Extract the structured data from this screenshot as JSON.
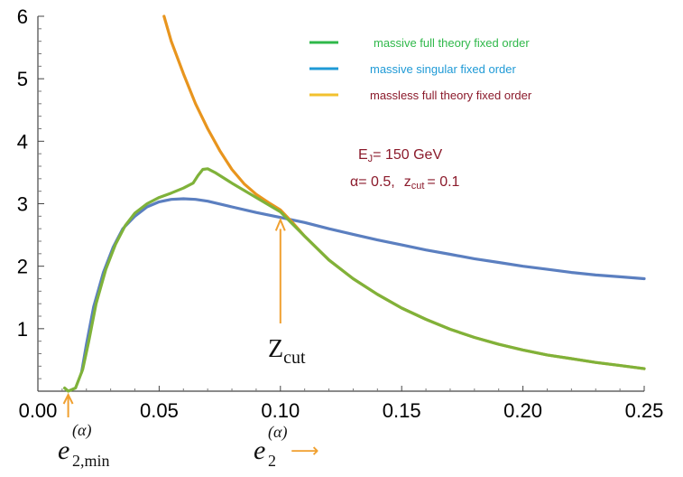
{
  "chart_data": {
    "type": "line",
    "xlim": [
      0.0,
      0.25
    ],
    "ylim": [
      0,
      6
    ],
    "x_ticks": [
      "0.00",
      "0.05",
      "0.10",
      "0.15",
      "0.20",
      "0.25"
    ],
    "y_ticks": [
      "1",
      "2",
      "3",
      "4",
      "5",
      "6"
    ],
    "legend_position": "top-right",
    "series": [
      {
        "name": "massive full theory fixed order",
        "color": "#2fb84a",
        "draw_color": "#7fb23a",
        "points": [
          [
            0.011,
            0.05
          ],
          [
            0.0125,
            0.0
          ],
          [
            0.0155,
            0.05
          ],
          [
            0.0185,
            0.35
          ],
          [
            0.021,
            0.8
          ],
          [
            0.024,
            1.4
          ],
          [
            0.028,
            1.95
          ],
          [
            0.032,
            2.35
          ],
          [
            0.036,
            2.65
          ],
          [
            0.04,
            2.85
          ],
          [
            0.045,
            3.0
          ],
          [
            0.05,
            3.1
          ],
          [
            0.055,
            3.17
          ],
          [
            0.06,
            3.25
          ],
          [
            0.064,
            3.33
          ],
          [
            0.066,
            3.45
          ],
          [
            0.068,
            3.55
          ],
          [
            0.07,
            3.56
          ],
          [
            0.073,
            3.5
          ],
          [
            0.08,
            3.33
          ],
          [
            0.09,
            3.1
          ],
          [
            0.1,
            2.87
          ],
          [
            0.11,
            2.48
          ],
          [
            0.12,
            2.1
          ],
          [
            0.13,
            1.8
          ],
          [
            0.14,
            1.55
          ],
          [
            0.15,
            1.33
          ],
          [
            0.16,
            1.15
          ],
          [
            0.17,
            0.99
          ],
          [
            0.18,
            0.86
          ],
          [
            0.19,
            0.75
          ],
          [
            0.2,
            0.66
          ],
          [
            0.21,
            0.58
          ],
          [
            0.22,
            0.52
          ],
          [
            0.23,
            0.46
          ],
          [
            0.24,
            0.41
          ],
          [
            0.25,
            0.36
          ]
        ]
      },
      {
        "name": "massive singular fixed order",
        "color": "#1f9ad6",
        "draw_color": "#5b7fc0",
        "points": [
          [
            0.018,
            0.3
          ],
          [
            0.02,
            0.75
          ],
          [
            0.023,
            1.35
          ],
          [
            0.027,
            1.9
          ],
          [
            0.031,
            2.3
          ],
          [
            0.035,
            2.6
          ],
          [
            0.04,
            2.8
          ],
          [
            0.045,
            2.95
          ],
          [
            0.05,
            3.03
          ],
          [
            0.055,
            3.07
          ],
          [
            0.06,
            3.08
          ],
          [
            0.065,
            3.07
          ],
          [
            0.07,
            3.04
          ],
          [
            0.08,
            2.95
          ],
          [
            0.09,
            2.86
          ],
          [
            0.1,
            2.78
          ],
          [
            0.11,
            2.7
          ],
          [
            0.12,
            2.6
          ],
          [
            0.13,
            2.51
          ],
          [
            0.14,
            2.42
          ],
          [
            0.15,
            2.34
          ],
          [
            0.16,
            2.26
          ],
          [
            0.17,
            2.19
          ],
          [
            0.18,
            2.12
          ],
          [
            0.19,
            2.06
          ],
          [
            0.2,
            2.0
          ],
          [
            0.21,
            1.95
          ],
          [
            0.22,
            1.9
          ],
          [
            0.23,
            1.86
          ],
          [
            0.24,
            1.83
          ],
          [
            0.25,
            1.8
          ]
        ]
      },
      {
        "name": "massless full theory fixed order",
        "color": "#f2c12e",
        "draw_color": "#e8951e",
        "points": [
          [
            0.052,
            6.0
          ],
          [
            0.055,
            5.6
          ],
          [
            0.06,
            5.08
          ],
          [
            0.065,
            4.6
          ],
          [
            0.07,
            4.2
          ],
          [
            0.075,
            3.85
          ],
          [
            0.08,
            3.55
          ],
          [
            0.085,
            3.32
          ],
          [
            0.09,
            3.15
          ],
          [
            0.095,
            3.02
          ],
          [
            0.1,
            2.9
          ],
          [
            0.105,
            2.7
          ],
          [
            0.11,
            2.48
          ],
          [
            0.12,
            2.1
          ],
          [
            0.13,
            1.8
          ],
          [
            0.14,
            1.55
          ],
          [
            0.15,
            1.33
          ],
          [
            0.16,
            1.15
          ],
          [
            0.17,
            0.99
          ],
          [
            0.18,
            0.86
          ],
          [
            0.19,
            0.75
          ],
          [
            0.2,
            0.66
          ],
          [
            0.21,
            0.58
          ],
          [
            0.22,
            0.52
          ],
          [
            0.23,
            0.46
          ],
          [
            0.24,
            0.41
          ],
          [
            0.25,
            0.36
          ]
        ]
      }
    ],
    "annotations": {
      "params_line1_main": "E",
      "params_line1_sub": "J",
      "params_line1_rest": "= 150 GeV",
      "params_line2_a": "α= 0.5,",
      "params_line2_z": "z",
      "params_line2_sub": "cut",
      "params_line2_rest": "= 0.1",
      "zcut_label_main": "Z",
      "zcut_label_sub": "cut",
      "zcut_arrow_x": 0.1,
      "zcut_arrow_y": 2.8,
      "emin_arrow_x": 0.0125,
      "emin_label_main": "e",
      "emin_label_sup": "(α)",
      "emin_label_sub": "2,min",
      "xlabel_main": "e",
      "xlabel_sup": "(α)",
      "xlabel_sub": "2",
      "xlabel_arrow": "⟶",
      "arrow_color": "#f0a030"
    }
  }
}
